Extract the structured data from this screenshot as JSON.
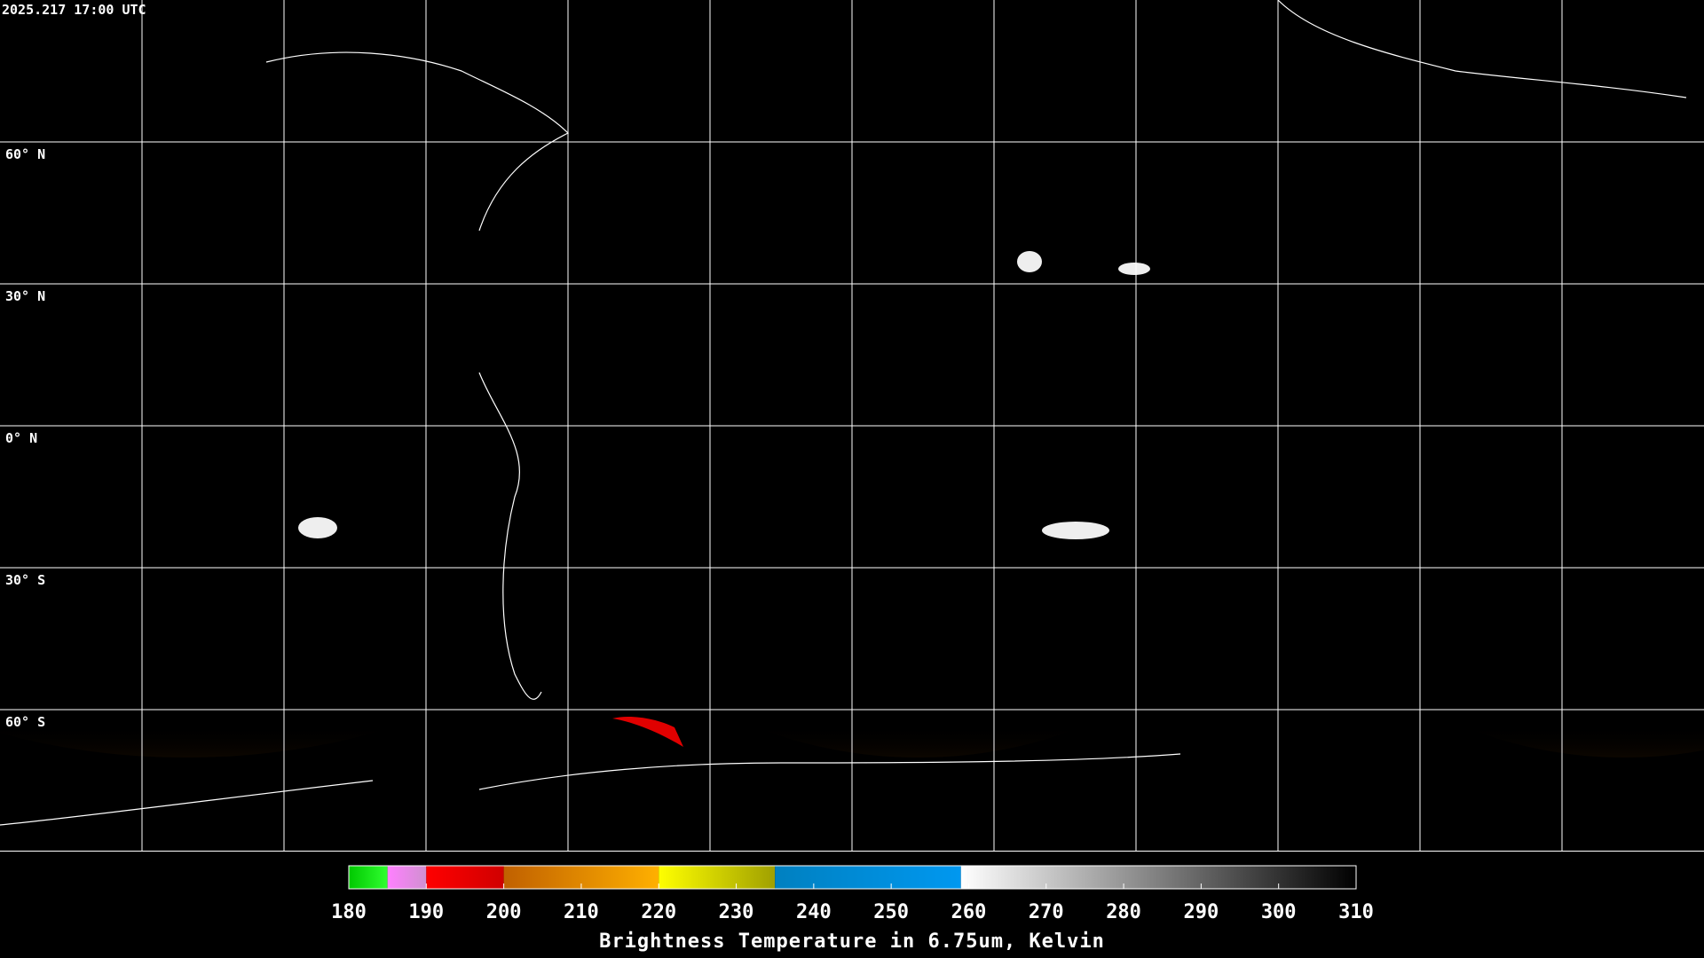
{
  "timestamp": "2025.217 17:00 UTC",
  "map": {
    "lat_lines": [
      {
        "value": 60,
        "label": "60° N"
      },
      {
        "value": 30,
        "label": "30° N"
      },
      {
        "value": 0,
        "label": "0° N"
      },
      {
        "value": -30,
        "label": "30° S"
      },
      {
        "value": -60,
        "label": "60° S"
      }
    ]
  },
  "colorbar": {
    "title": "Brightness Temperature in 6.75um, Kelvin",
    "range": [
      180,
      310
    ],
    "ticks": [
      180,
      190,
      200,
      210,
      220,
      230,
      240,
      250,
      260,
      270,
      280,
      290,
      300,
      310
    ],
    "segments": [
      {
        "from": 180,
        "to": 185,
        "colors": [
          "#00c800",
          "#30ff30"
        ]
      },
      {
        "from": 185,
        "to": 190,
        "colors": [
          "#ff80ff",
          "#d090d0"
        ]
      },
      {
        "from": 190,
        "to": 200,
        "colors": [
          "#ff0000",
          "#d00000"
        ]
      },
      {
        "from": 200,
        "to": 220,
        "colors": [
          "#c06000",
          "#ffb000"
        ]
      },
      {
        "from": 220,
        "to": 235,
        "colors": [
          "#ffff00",
          "#a0a000"
        ]
      },
      {
        "from": 235,
        "to": 259,
        "colors": [
          "#0080c0",
          "#0098f0"
        ]
      },
      {
        "from": 259,
        "to": 310,
        "colors": [
          "#ffffff",
          "#000000"
        ]
      }
    ]
  }
}
